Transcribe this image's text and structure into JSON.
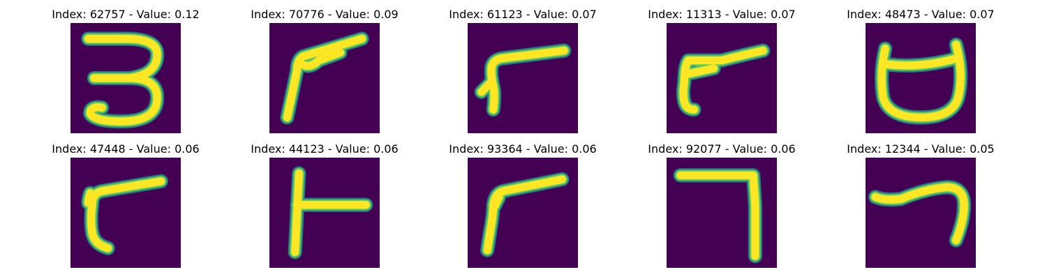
{
  "colors": {
    "background": "#440154",
    "stroke_edge": "#21918c",
    "stroke_mid": "#5ec962",
    "stroke_core": "#fde725"
  },
  "samples": [
    {
      "title": "Index: 62757 - Value: 0.12",
      "glyph": "digit-three"
    },
    {
      "title": "Index: 70776 - Value: 0.09",
      "glyph": "angled-stroke"
    },
    {
      "title": "Index: 61123 - Value: 0.07",
      "glyph": "angled-stroke"
    },
    {
      "title": "Index: 11313 - Value: 0.07",
      "glyph": "angled-stroke"
    },
    {
      "title": "Index: 48473 - Value: 0.07",
      "glyph": "cup-shape"
    },
    {
      "title": "Index: 47448 - Value: 0.06",
      "glyph": "angled-stroke"
    },
    {
      "title": "Index: 44123 - Value: 0.06",
      "glyph": "t-rotated"
    },
    {
      "title": "Index: 93364 - Value: 0.06",
      "glyph": "angled-stroke"
    },
    {
      "title": "Index: 92077 - Value: 0.06",
      "glyph": "digit-seven-angle"
    },
    {
      "title": "Index: 12344 - Value: 0.05",
      "glyph": "hook-stroke"
    }
  ]
}
